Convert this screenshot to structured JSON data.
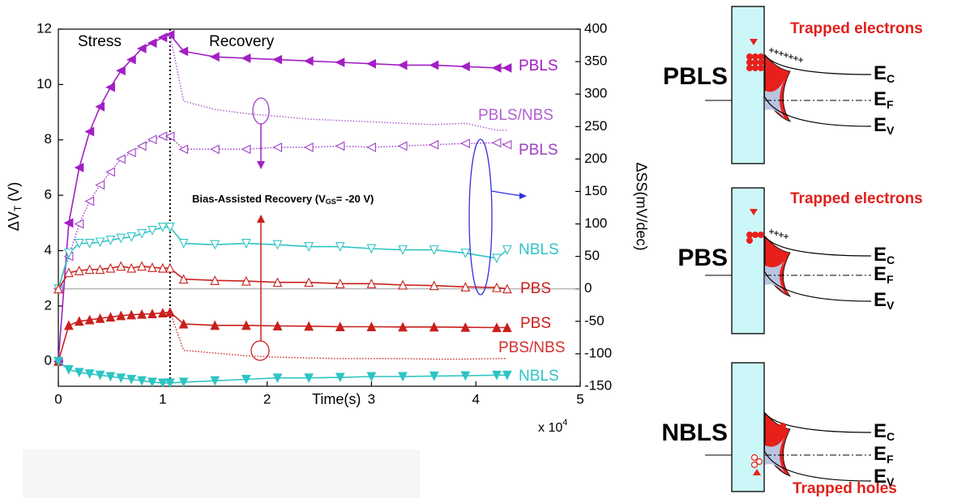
{
  "chart_data": {
    "type": "line",
    "x": [
      0,
      0.1,
      0.2,
      0.3,
      0.4,
      0.5,
      0.6,
      0.7,
      0.8,
      0.9,
      1.0,
      1.07,
      1.2,
      1.5,
      1.8,
      2.1,
      2.4,
      2.7,
      3.0,
      3.3,
      3.6,
      3.9,
      4.2,
      4.3
    ],
    "xlim": [
      0,
      5
    ],
    "xticks": [
      0,
      1,
      2,
      3,
      4,
      5
    ],
    "x_label": "Time(s)",
    "x_multiplier": "x 10",
    "x_multiplier_exp": "4",
    "y_label": "ΔV",
    "y_label_sub": "T",
    "y_label_unit": " (V)",
    "ylim": [
      -0.9,
      12
    ],
    "yticks": [
      0,
      2,
      4,
      6,
      8,
      10,
      12
    ],
    "y2_label": "ΔSS(mV/dec)",
    "y2lim": [
      -150,
      400
    ],
    "y2ticks": [
      -150,
      -100,
      -50,
      0,
      50,
      100,
      150,
      200,
      250,
      300,
      350,
      400
    ],
    "phase_boundary_x": 1.07,
    "reference_line_y2": 0,
    "annotations": {
      "stress": "Stress",
      "recovery": "Recovery",
      "bias_recovery": "Bias-Assisted Recovery (V",
      "bias_recovery_sub": "GS",
      "bias_recovery_end": "= -20 V)"
    },
    "series": [
      {
        "name": "PBLS",
        "color": "#a21fc4",
        "marker": "triangle-left",
        "line_style": "solid",
        "values": [
          0,
          5,
          7,
          8.3,
          9.2,
          9.9,
          10.5,
          10.9,
          11.3,
          11.5,
          11.7,
          11.8,
          11.2,
          11.0,
          10.95,
          10.9,
          10.85,
          10.8,
          10.75,
          10.7,
          10.7,
          10.65,
          10.6,
          10.6
        ]
      },
      {
        "name": "PBLS/NBS",
        "color": "#b060d0",
        "marker": null,
        "line_style": "dotted",
        "values": [
          null,
          null,
          null,
          null,
          null,
          null,
          null,
          null,
          null,
          null,
          11.7,
          11.8,
          9.4,
          9.1,
          8.95,
          8.85,
          8.75,
          8.7,
          8.65,
          8.6,
          8.55,
          8.6,
          8.35,
          8.35
        ]
      },
      {
        "name": "PBLS",
        "color": "#a040c8",
        "marker": "triangle-left-open",
        "line_style": "dotted",
        "axis": "y2",
        "values": [
          0,
          50,
          100,
          135,
          160,
          180,
          200,
          210,
          220,
          230,
          235,
          235,
          215,
          215,
          215,
          218,
          218,
          220,
          218,
          220,
          222,
          224,
          225,
          222
        ]
      },
      {
        "name": "NBLS",
        "color": "#2ec4c4",
        "marker": "triangle-down-open",
        "line_style": "solid",
        "axis": "y2",
        "values": [
          0,
          55,
          70,
          70,
          72,
          75,
          78,
          80,
          85,
          90,
          95,
          95,
          70,
          68,
          70,
          68,
          65,
          65,
          62,
          60,
          60,
          55,
          47,
          60
        ]
      },
      {
        "name": "PBS",
        "color": "#c8201c",
        "marker": "triangle-up-open",
        "line_style": "solid",
        "axis": "y2",
        "values": [
          0,
          25,
          28,
          30,
          30,
          32,
          35,
          32,
          35,
          33,
          32,
          32,
          15,
          13,
          12,
          10,
          10,
          8,
          8,
          6,
          5,
          3,
          2,
          0
        ]
      },
      {
        "name": "PBS",
        "color": "#c8201c",
        "marker": "triangle-up",
        "line_style": "solid",
        "values": [
          0,
          1.3,
          1.45,
          1.5,
          1.55,
          1.6,
          1.65,
          1.68,
          1.7,
          1.72,
          1.75,
          1.78,
          1.35,
          1.3,
          1.3,
          1.28,
          1.27,
          1.25,
          1.25,
          1.24,
          1.24,
          1.23,
          1.22,
          1.22
        ]
      },
      {
        "name": "PBS/NBS",
        "color": "#d03030",
        "marker": null,
        "line_style": "dotted",
        "values": [
          null,
          null,
          null,
          null,
          null,
          null,
          null,
          null,
          null,
          null,
          1.75,
          1.78,
          0.4,
          0.3,
          0.2,
          0.15,
          0.12,
          0.1,
          0.1,
          0.1,
          0.08,
          0.08,
          0.1,
          0.1
        ]
      },
      {
        "name": "NBLS",
        "color": "#2ec4c4",
        "marker": "triangle-down",
        "line_style": "solid",
        "values": [
          0,
          -0.3,
          -0.4,
          -0.45,
          -0.5,
          -0.55,
          -0.6,
          -0.65,
          -0.7,
          -0.75,
          -0.78,
          -0.78,
          -0.75,
          -0.7,
          -0.65,
          -0.6,
          -0.6,
          -0.58,
          -0.55,
          -0.55,
          -0.53,
          -0.52,
          -0.5,
          -0.5
        ]
      }
    ]
  },
  "diagrams": [
    {
      "label": "PBLS",
      "trap_label": "Trapped electrons",
      "levels": [
        {
          "symbol": "E",
          "sub": "C"
        },
        {
          "symbol": "E",
          "sub": "F"
        },
        {
          "symbol": "E",
          "sub": "V"
        }
      ]
    },
    {
      "label": "PBS",
      "trap_label": "Trapped electrons",
      "levels": [
        {
          "symbol": "E",
          "sub": "C"
        },
        {
          "symbol": "E",
          "sub": "F"
        },
        {
          "symbol": "E",
          "sub": "V"
        }
      ]
    },
    {
      "label": "NBLS",
      "trap_label": "Trapped holes",
      "levels": [
        {
          "symbol": "E",
          "sub": "C"
        },
        {
          "symbol": "E",
          "sub": "F"
        },
        {
          "symbol": "E",
          "sub": "V"
        }
      ]
    }
  ]
}
